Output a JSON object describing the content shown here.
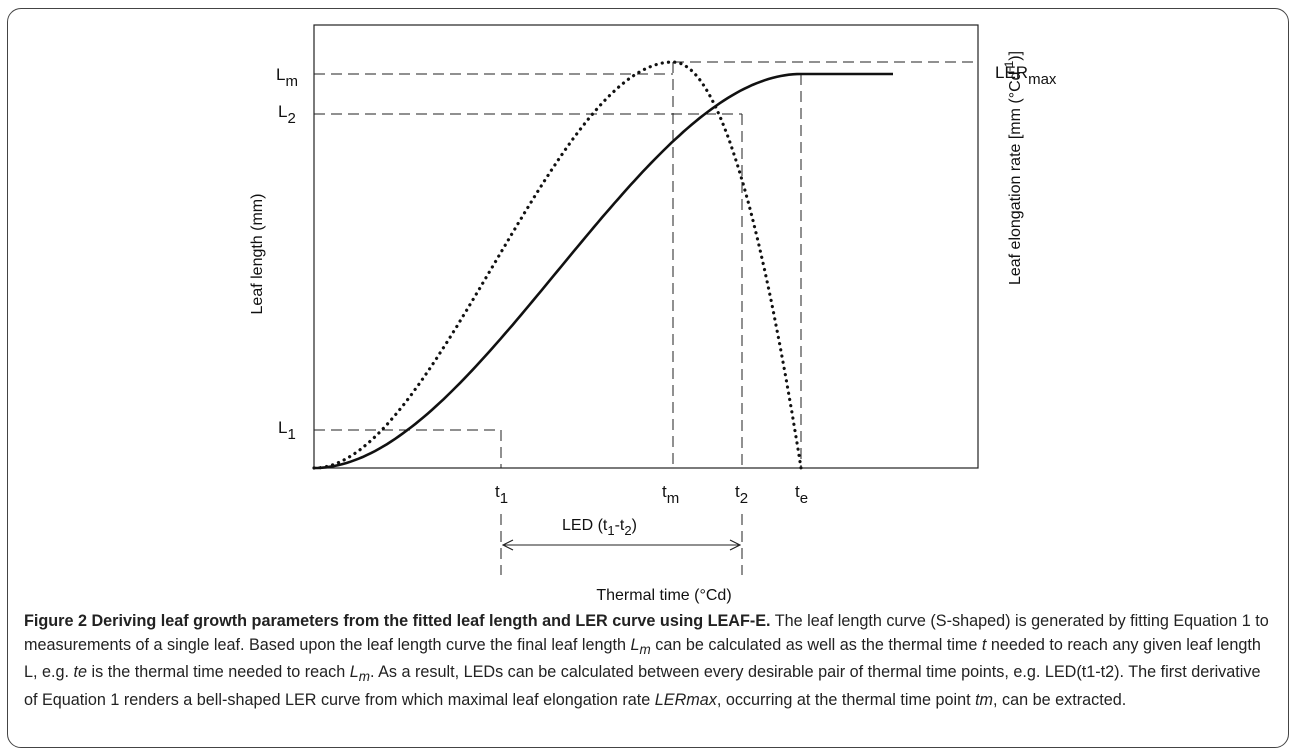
{
  "figure": {
    "chart_data": {
      "type": "line",
      "series": [],
      "x_ticks": [
        "t1",
        "tm",
        "t2",
        "te"
      ],
      "y_ticks_left": [
        "L1",
        "L2",
        "Lm"
      ],
      "right_marker": "LERmax",
      "xlabel": "Thermal time (°Cd)",
      "ylabel_left": "Leaf length (mm)",
      "ylabel_right": "Leaf elongation rate [mm (°Cd-1)]",
      "annotation": "LED (t1-t2)",
      "grid": false
    },
    "labels": {
      "ylabel_left": "Leaf length (mm)",
      "ylabel_right_main": "Leaf elongation rate [mm (°Cd",
      "ylabel_right_sup": "-1",
      "ylabel_right_end": ")]",
      "xlabel": "Thermal time (°Cd)",
      "L_base": "L",
      "L1_sub": "1",
      "L2_sub": "2",
      "Lm_sub": "m",
      "t_base": "t",
      "t1_sub": "1",
      "tm_sub": "m",
      "t2_sub": "2",
      "te_sub": "e",
      "lermax_base": "LER",
      "lermax_sub": "max",
      "led_prefix": "LED (t",
      "led_sub1": "1",
      "led_mid": "-t",
      "led_sub2": "2",
      "led_suffix": ")"
    }
  },
  "caption": {
    "title": "Figure 2 Deriving leaf growth parameters from the fitted leaf length and LER curve using LEAF-E.",
    "s1": " The leaf length curve (S-shaped) is generated by fitting Equation 1 to measurements of a single leaf. Based upon the leaf length curve the final leaf length ",
    "Lm": "L",
    "Lm_sub": "m",
    "s2": " can be calculated as well as the thermal time ",
    "t": "t",
    "s3": " needed to reach any given leaf length L, e.g. ",
    "te": "te",
    "s4": " is the thermal time needed to reach ",
    "Lm2": "L",
    "Lm2_sub": "m",
    "s5": ". As a result, LEDs can be calculated between every desirable pair of thermal time points, e.g. LED(t1-t2). The first derivative of Equation 1 renders a bell-shaped LER curve from which maximal leaf elongation rate ",
    "lermax": "LERmax",
    "s6": ", occurring at the thermal time point ",
    "tm": "tm",
    "s7": ", can be extracted."
  }
}
